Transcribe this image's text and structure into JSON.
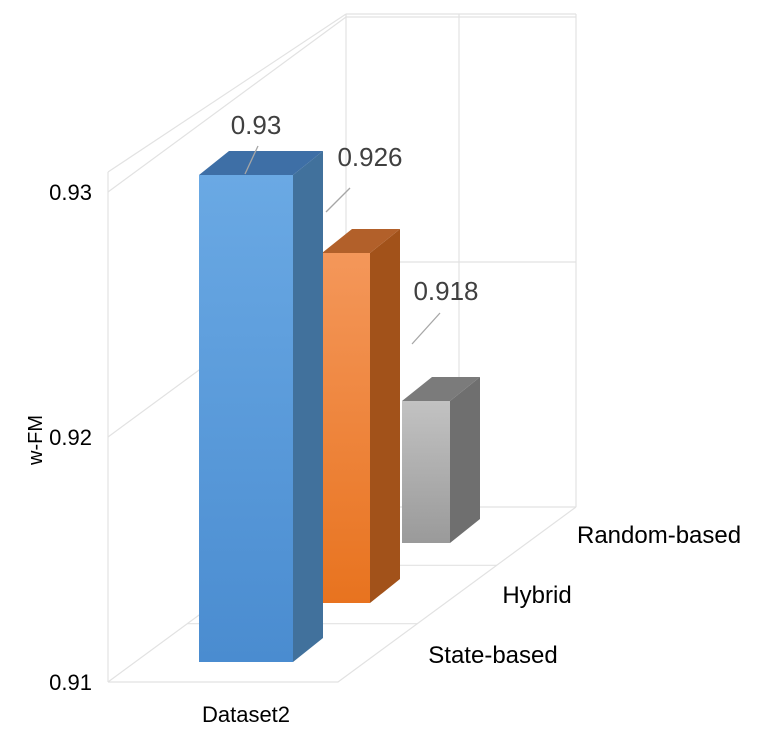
{
  "chart_data": {
    "type": "bar",
    "title": "",
    "ylabel": "w-FM",
    "xlabel": "",
    "ylim": [
      0.91,
      0.93
    ],
    "y_ticks": [
      "0.91",
      "0.92",
      "0.93"
    ],
    "categories": [
      "Dataset2"
    ],
    "series": [
      {
        "name": "State-based",
        "values": [
          0.93
        ],
        "label": "0.93",
        "color": "#5b9bd5"
      },
      {
        "name": "Hybrid",
        "values": [
          0.926
        ],
        "label": "0.926",
        "color": "#ed7d31"
      },
      {
        "name": "Random-based",
        "values": [
          0.918
        ],
        "label": "0.918",
        "color": "#a5a5a5"
      }
    ],
    "grid": true,
    "projection": "3d-column"
  }
}
